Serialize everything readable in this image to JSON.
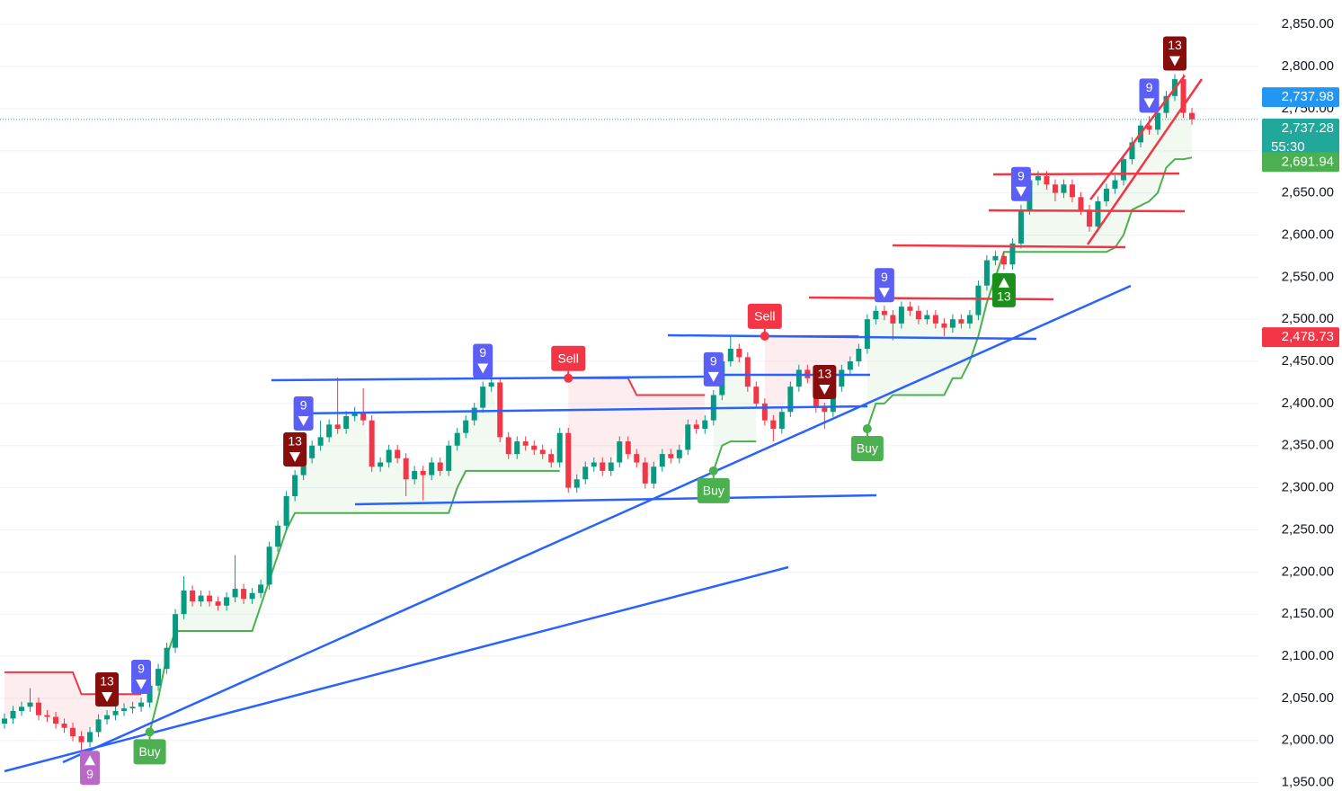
{
  "chart_data": {
    "type": "candlestick",
    "ylim": [
      1940,
      2879
    ],
    "yticks": [
      {
        "value": 1950,
        "label": "1,950.00"
      },
      {
        "value": 2000,
        "label": "2,000.00"
      },
      {
        "value": 2050,
        "label": "2,050.00"
      },
      {
        "value": 2100,
        "label": "2,100.00"
      },
      {
        "value": 2150,
        "label": "2,150.00"
      },
      {
        "value": 2200,
        "label": "2,200.00"
      },
      {
        "value": 2250,
        "label": "2,250.00"
      },
      {
        "value": 2300,
        "label": "2,300.00"
      },
      {
        "value": 2350,
        "label": "2,350.00"
      },
      {
        "value": 2400,
        "label": "2,400.00"
      },
      {
        "value": 2450,
        "label": "2,450.00"
      },
      {
        "value": 2500,
        "label": "2,500.00"
      },
      {
        "value": 2550,
        "label": "2,550.00"
      },
      {
        "value": 2600,
        "label": "2,600.00"
      },
      {
        "value": 2650,
        "label": "2,650.00"
      },
      {
        "value": 2700,
        "label": "2,700.00"
      },
      {
        "value": 2750,
        "label": "2,750.00"
      },
      {
        "value": 2800,
        "label": "2,800.00"
      },
      {
        "value": 2850,
        "label": "2,850.00"
      }
    ],
    "grid": true,
    "up_color": "#089981",
    "down_color": "#f23645",
    "open": [
      2020,
      2026,
      2035,
      2040,
      2045,
      2030,
      2028,
      2020,
      2015,
      2005,
      1998,
      2010,
      2025,
      2030,
      2035,
      2038,
      2040,
      2045,
      2065,
      2085,
      2110,
      2150,
      2178,
      2165,
      2172,
      2165,
      2160,
      2170,
      2180,
      2168,
      2175,
      2185,
      2230,
      2255,
      2290,
      2315,
      2335,
      2350,
      2360,
      2375,
      2370,
      2385,
      2390,
      2380,
      2325,
      2330,
      2345,
      2335,
      2310,
      2320,
      2315,
      2330,
      2320,
      2350,
      2365,
      2380,
      2395,
      2420,
      2425,
      2360,
      2340,
      2355,
      2350,
      2345,
      2340,
      2330,
      2365,
      2300,
      2310,
      2325,
      2330,
      2320,
      2330,
      2355,
      2340,
      2330,
      2305,
      2325,
      2340,
      2335,
      2345,
      2375,
      2370,
      2380,
      2410,
      2450,
      2465,
      2455,
      2420,
      2400,
      2380,
      2370,
      2390,
      2420,
      2440,
      2430,
      2395,
      2390,
      2420,
      2440,
      2450,
      2465,
      2500,
      2510,
      2505,
      2495,
      2515,
      2510,
      2500,
      2505,
      2495,
      2490,
      2500,
      2495,
      2505,
      2540,
      2570,
      2575,
      2565,
      2590,
      2630,
      2665,
      2670,
      2660,
      2650,
      2660,
      2645,
      2630,
      2610,
      2640,
      2655,
      2665,
      2690,
      2710,
      2730,
      2725,
      2745,
      2765,
      2785,
      2745
    ],
    "high": [
      2032,
      2041,
      2046,
      2062,
      2051,
      2036,
      2034,
      2026,
      2021,
      2011,
      2016,
      2031,
      2036,
      2041,
      2044,
      2046,
      2051,
      2071,
      2091,
      2116,
      2156,
      2195,
      2184,
      2178,
      2178,
      2171,
      2176,
      2220,
      2186,
      2181,
      2191,
      2236,
      2261,
      2296,
      2321,
      2341,
      2356,
      2380,
      2381,
      2431,
      2391,
      2396,
      2418,
      2386,
      2336,
      2351,
      2351,
      2341,
      2326,
      2326,
      2336,
      2336,
      2356,
      2371,
      2386,
      2401,
      2426,
      2450,
      2431,
      2366,
      2361,
      2361,
      2356,
      2351,
      2346,
      2371,
      2371,
      2316,
      2331,
      2336,
      2336,
      2336,
      2361,
      2361,
      2346,
      2336,
      2331,
      2346,
      2346,
      2351,
      2381,
      2381,
      2386,
      2416,
      2456,
      2481,
      2471,
      2461,
      2426,
      2406,
      2386,
      2396,
      2426,
      2446,
      2446,
      2436,
      2401,
      2426,
      2446,
      2456,
      2471,
      2506,
      2516,
      2516,
      2511,
      2521,
      2521,
      2516,
      2511,
      2511,
      2501,
      2506,
      2506,
      2511,
      2546,
      2576,
      2581,
      2581,
      2596,
      2636,
      2671,
      2676,
      2676,
      2666,
      2666,
      2666,
      2651,
      2636,
      2646,
      2661,
      2671,
      2696,
      2716,
      2736,
      2741,
      2751,
      2771,
      2791,
      2791,
      2751
    ],
    "low": [
      2014,
      2020,
      2029,
      2034,
      2024,
      2022,
      2014,
      2009,
      1999,
      1988,
      1992,
      2004,
      2019,
      2024,
      2029,
      2032,
      2034,
      2039,
      2059,
      2079,
      2104,
      2144,
      2159,
      2159,
      2159,
      2154,
      2154,
      2164,
      2162,
      2162,
      2169,
      2179,
      2224,
      2249,
      2284,
      2309,
      2329,
      2344,
      2354,
      2364,
      2364,
      2379,
      2374,
      2319,
      2319,
      2324,
      2329,
      2290,
      2304,
      2285,
      2309,
      2314,
      2314,
      2344,
      2359,
      2374,
      2389,
      2414,
      2354,
      2334,
      2334,
      2344,
      2339,
      2334,
      2324,
      2324,
      2294,
      2294,
      2304,
      2319,
      2314,
      2314,
      2324,
      2334,
      2324,
      2299,
      2299,
      2319,
      2329,
      2329,
      2339,
      2364,
      2364,
      2374,
      2404,
      2444,
      2449,
      2414,
      2394,
      2374,
      2355,
      2364,
      2384,
      2414,
      2424,
      2389,
      2370,
      2384,
      2414,
      2434,
      2444,
      2459,
      2494,
      2499,
      2475,
      2489,
      2504,
      2494,
      2494,
      2489,
      2480,
      2484,
      2489,
      2489,
      2499,
      2534,
      2564,
      2559,
      2559,
      2584,
      2624,
      2659,
      2654,
      2640,
      2644,
      2639,
      2624,
      2604,
      2604,
      2634,
      2649,
      2659,
      2684,
      2704,
      2719,
      2719,
      2739,
      2759,
      2739,
      2731
    ],
    "close": [
      2026,
      2035,
      2040,
      2045,
      2030,
      2028,
      2020,
      2015,
      2005,
      1998,
      2010,
      2025,
      2030,
      2035,
      2038,
      2040,
      2045,
      2065,
      2085,
      2110,
      2150,
      2178,
      2165,
      2172,
      2165,
      2160,
      2170,
      2180,
      2168,
      2175,
      2185,
      2230,
      2255,
      2290,
      2315,
      2335,
      2350,
      2360,
      2375,
      2370,
      2385,
      2390,
      2380,
      2325,
      2330,
      2345,
      2335,
      2310,
      2320,
      2315,
      2330,
      2320,
      2350,
      2365,
      2380,
      2395,
      2420,
      2425,
      2360,
      2340,
      2355,
      2350,
      2345,
      2340,
      2330,
      2365,
      2300,
      2310,
      2325,
      2330,
      2320,
      2330,
      2355,
      2340,
      2330,
      2305,
      2325,
      2340,
      2335,
      2345,
      2375,
      2370,
      2380,
      2410,
      2450,
      2465,
      2455,
      2420,
      2400,
      2380,
      2370,
      2390,
      2420,
      2440,
      2430,
      2395,
      2390,
      2420,
      2440,
      2450,
      2465,
      2500,
      2510,
      2505,
      2495,
      2515,
      2510,
      2500,
      2505,
      2495,
      2490,
      2500,
      2495,
      2505,
      2540,
      2570,
      2575,
      2565,
      2590,
      2630,
      2665,
      2670,
      2660,
      2650,
      2660,
      2645,
      2630,
      2610,
      2640,
      2655,
      2665,
      2690,
      2710,
      2730,
      2725,
      2745,
      2765,
      2785,
      2745,
      2737.28
    ],
    "support": {
      "color": "#4caf50",
      "values": [
        null,
        null,
        null,
        null,
        null,
        null,
        null,
        null,
        null,
        null,
        null,
        null,
        null,
        null,
        null,
        null,
        null,
        2010,
        2050,
        2100,
        2130,
        2130,
        2130,
        2130,
        2130,
        2130,
        2130,
        2130,
        2130,
        2130,
        2160,
        2190,
        2220,
        2250,
        2270,
        2270,
        2270,
        2270,
        2270,
        2270,
        2270,
        2270,
        2270,
        2270,
        2270,
        2270,
        2270,
        2270,
        2270,
        2270,
        2270,
        2270,
        2270,
        2300,
        2320,
        2320,
        2320,
        2320,
        2320,
        2320,
        2320,
        2320,
        2320,
        2320,
        2320,
        2320,
        null,
        null,
        null,
        null,
        null,
        null,
        null,
        null,
        null,
        null,
        null,
        null,
        null,
        null,
        null,
        null,
        null,
        2320,
        2350,
        2355,
        2355,
        2355,
        2355,
        null,
        null,
        null,
        null,
        null,
        null,
        null,
        null,
        null,
        null,
        null,
        null,
        2370,
        2400,
        2400,
        2410,
        2410,
        2410,
        2410,
        2410,
        2410,
        2410,
        2430,
        2430,
        2450,
        2480,
        2520,
        2550,
        2580,
        2580,
        2580,
        2580,
        2580,
        2580,
        2580,
        2580,
        2580,
        2580,
        2580,
        2580,
        2580,
        2585,
        2600,
        2630,
        2635,
        2640,
        2650,
        2680,
        2690,
        2690,
        2691.94
      ]
    },
    "resistance": {
      "color": "#f23645",
      "values": [
        2081,
        2081,
        2081,
        2081,
        2081,
        2081,
        2081,
        2081,
        2081,
        2055,
        2055,
        2055,
        2055,
        2055,
        2055,
        2055,
        2055,
        null,
        null,
        null,
        null,
        null,
        null,
        null,
        null,
        null,
        null,
        null,
        null,
        null,
        null,
        null,
        null,
        null,
        null,
        null,
        null,
        null,
        null,
        null,
        null,
        null,
        null,
        null,
        null,
        null,
        null,
        null,
        null,
        null,
        null,
        null,
        null,
        null,
        null,
        null,
        null,
        null,
        null,
        null,
        null,
        null,
        null,
        null,
        null,
        null,
        2430,
        2430,
        2430,
        2430,
        2430,
        2430,
        2430,
        2430,
        2410,
        2410,
        2410,
        2410,
        2410,
        2410,
        2410,
        2410,
        2410,
        null,
        null,
        null,
        null,
        null,
        null,
        2480,
        2480,
        2480,
        2480,
        2480,
        2480,
        2480,
        2480,
        2480,
        2480,
        2480,
        2480,
        null,
        null,
        null,
        null,
        null,
        null,
        null,
        null,
        null,
        null,
        null,
        null,
        null,
        null,
        null,
        null,
        null,
        null,
        null,
        null,
        null,
        null,
        null,
        null,
        null,
        null,
        null,
        null,
        null,
        null,
        null,
        null,
        null,
        null,
        null,
        null,
        null
      ]
    },
    "markers": [
      {
        "at": 10,
        "label": "9",
        "kind": "up",
        "color": "#ba68c8"
      },
      {
        "at": 12,
        "label": "13",
        "kind": "down",
        "color": "#880e0e"
      },
      {
        "at": 16,
        "label": "9",
        "kind": "down",
        "color": "#5b5ff5"
      },
      {
        "at": 17,
        "label": "Buy",
        "kind": "buy",
        "color": "#4caf50"
      },
      {
        "at": 34,
        "label": "13",
        "kind": "down",
        "color": "#880e0e"
      },
      {
        "at": 35,
        "label": "9",
        "kind": "down",
        "color": "#5b5ff5"
      },
      {
        "at": 56,
        "label": "9",
        "kind": "down",
        "color": "#5b5ff5"
      },
      {
        "at": 66,
        "label": "Sell",
        "kind": "sell",
        "color": "#f23645"
      },
      {
        "at": 83,
        "label": "9",
        "kind": "down",
        "color": "#5b5ff5"
      },
      {
        "at": 83,
        "label": "Buy",
        "kind": "buy",
        "color": "#4caf50"
      },
      {
        "at": 89,
        "label": "Sell",
        "kind": "sell",
        "color": "#f23645"
      },
      {
        "at": 96,
        "label": "13",
        "kind": "down",
        "color": "#880e0e"
      },
      {
        "at": 101,
        "label": "Buy",
        "kind": "buy",
        "color": "#4caf50"
      },
      {
        "at": 103,
        "label": "9",
        "kind": "down",
        "color": "#5b5ff5"
      },
      {
        "at": 117,
        "label": "13",
        "kind": "up",
        "color": "#1b8e1b"
      },
      {
        "at": 119,
        "label": "9",
        "kind": "down",
        "color": "#5b5ff5"
      },
      {
        "at": 134,
        "label": "9",
        "kind": "down",
        "color": "#5b5ff5"
      },
      {
        "at": 137,
        "label": "13",
        "kind": "down",
        "color": "#880e0e"
      }
    ],
    "price_labels": [
      {
        "value": 2737.98,
        "label": "2,737.98",
        "color": "#2196f3"
      },
      {
        "value": 2737.28,
        "label": "2,737.28",
        "color": "#22a79b"
      },
      {
        "value": 2691.94,
        "label": "2,691.94",
        "color": "#4caf50"
      },
      {
        "value": 2478.73,
        "label": "2,478.73",
        "color": "#f23645"
      }
    ],
    "countdown": "55:30"
  }
}
